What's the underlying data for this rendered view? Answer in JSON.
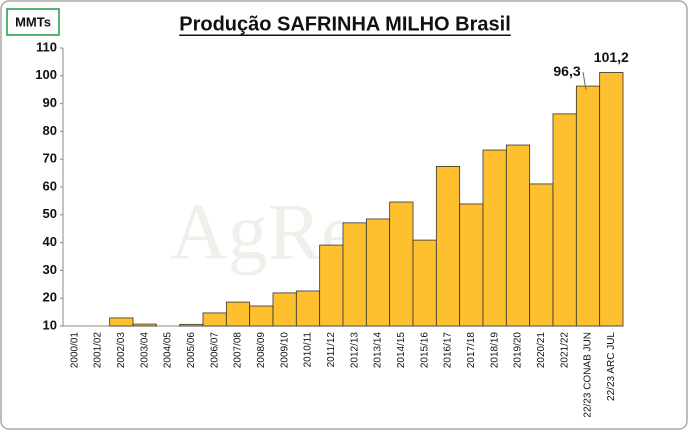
{
  "chart_data": {
    "type": "bar",
    "title": "Produção SAFRINHA MILHO Brasil",
    "unit_label": "MMTs",
    "watermark": "AgRe",
    "categories": [
      "2000/01",
      "2001/02",
      "2002/03",
      "2003/04",
      "2004/05",
      "2005/06",
      "2006/07",
      "2007/08",
      "2008/09",
      "2009/10",
      "2010/11",
      "2011/12",
      "2012/13",
      "2013/14",
      "2014/15",
      "2015/16",
      "2016/17",
      "2017/18",
      "2018/19",
      "2019/20",
      "2020/21",
      "2021/22",
      "22/23 CONAB JUN",
      "22/23 ARC JUL"
    ],
    "values": [
      10,
      10,
      12.9,
      10.7,
      10,
      10.6,
      14.7,
      18.6,
      17.2,
      21.9,
      22.6,
      39.1,
      47.1,
      48.5,
      54.6,
      40.9,
      67.4,
      53.9,
      73.3,
      75.1,
      61.1,
      86.3,
      96.3,
      101.2
    ],
    "value_labels": [
      null,
      null,
      null,
      null,
      null,
      null,
      null,
      null,
      null,
      null,
      null,
      null,
      null,
      null,
      null,
      null,
      null,
      null,
      null,
      null,
      null,
      null,
      "96,3",
      "101,2"
    ],
    "color": "#fec02e",
    "ylim": [
      10,
      110
    ],
    "yticks": [
      10,
      20,
      30,
      40,
      50,
      60,
      70,
      80,
      90,
      100,
      110
    ],
    "grid": false
  }
}
